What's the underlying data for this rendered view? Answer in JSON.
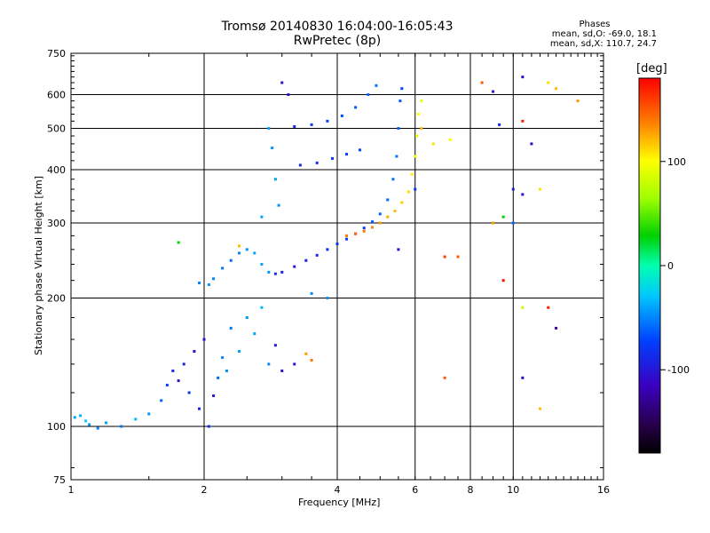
{
  "title_line1": "Tromsø 20140830 16:04:00-16:05:43",
  "title_line2": "RwPretec (8p)",
  "phases": {
    "heading": "Phases",
    "line_o": "mean, sd,O: -69.0, 18.1",
    "line_x": "mean, sd,X: 110.7, 24.7"
  },
  "colorbar": {
    "unit_label": "[deg]",
    "ticks": [
      "100",
      "0",
      "-100"
    ],
    "tick_values": [
      100,
      0,
      -100
    ],
    "range": [
      -180,
      180
    ]
  },
  "chart_data": {
    "type": "scatter",
    "xlabel": "Frequency [MHz]",
    "ylabel": "Stationary phase Virtual Height [km]",
    "x_scale": "log",
    "y_scale": "log",
    "xlim": [
      1,
      16
    ],
    "ylim": [
      75,
      750
    ],
    "x_ticks": [
      1,
      2,
      4,
      6,
      8,
      10,
      16
    ],
    "x_tick_labels": [
      "1",
      "2",
      "4",
      "6",
      "8",
      "10",
      "16"
    ],
    "y_ticks": [
      75,
      100,
      200,
      300,
      400,
      500,
      600,
      750
    ],
    "y_tick_labels": [
      "75",
      "100",
      "200",
      "300",
      "400",
      "500",
      "600",
      "750"
    ],
    "grid": true,
    "points": [
      {
        "x": 1.02,
        "y": 105,
        "phase": -40
      },
      {
        "x": 1.05,
        "y": 106,
        "phase": -35
      },
      {
        "x": 1.08,
        "y": 103,
        "phase": -30
      },
      {
        "x": 1.1,
        "y": 101,
        "phase": -45
      },
      {
        "x": 1.15,
        "y": 99,
        "phase": -50
      },
      {
        "x": 1.2,
        "y": 102,
        "phase": -40
      },
      {
        "x": 1.3,
        "y": 100,
        "phase": -55
      },
      {
        "x": 1.4,
        "y": 104,
        "phase": -35
      },
      {
        "x": 1.5,
        "y": 107,
        "phase": -45
      },
      {
        "x": 1.6,
        "y": 115,
        "phase": -60
      },
      {
        "x": 1.65,
        "y": 125,
        "phase": -70
      },
      {
        "x": 1.7,
        "y": 135,
        "phase": -90
      },
      {
        "x": 1.75,
        "y": 128,
        "phase": -100
      },
      {
        "x": 1.8,
        "y": 140,
        "phase": -95
      },
      {
        "x": 1.85,
        "y": 120,
        "phase": -80
      },
      {
        "x": 1.9,
        "y": 150,
        "phase": -105
      },
      {
        "x": 1.95,
        "y": 110,
        "phase": -90
      },
      {
        "x": 2.0,
        "y": 160,
        "phase": -100
      },
      {
        "x": 2.05,
        "y": 100,
        "phase": -85
      },
      {
        "x": 2.1,
        "y": 118,
        "phase": -95
      },
      {
        "x": 2.15,
        "y": 130,
        "phase": -60
      },
      {
        "x": 2.2,
        "y": 145,
        "phase": -50
      },
      {
        "x": 2.25,
        "y": 135,
        "phase": -45
      },
      {
        "x": 2.3,
        "y": 170,
        "phase": -55
      },
      {
        "x": 2.4,
        "y": 150,
        "phase": -40
      },
      {
        "x": 2.5,
        "y": 180,
        "phase": -45
      },
      {
        "x": 2.6,
        "y": 165,
        "phase": -40
      },
      {
        "x": 2.7,
        "y": 190,
        "phase": -35
      },
      {
        "x": 2.8,
        "y": 140,
        "phase": -50
      },
      {
        "x": 2.9,
        "y": 155,
        "phase": -95
      },
      {
        "x": 3.0,
        "y": 135,
        "phase": -100
      },
      {
        "x": 3.2,
        "y": 140,
        "phase": -105
      },
      {
        "x": 3.4,
        "y": 148,
        "phase": 130
      },
      {
        "x": 3.5,
        "y": 143,
        "phase": 140
      },
      {
        "x": 1.95,
        "y": 217,
        "phase": -50
      },
      {
        "x": 2.05,
        "y": 215,
        "phase": -45
      },
      {
        "x": 2.1,
        "y": 222,
        "phase": -50
      },
      {
        "x": 2.2,
        "y": 235,
        "phase": -55
      },
      {
        "x": 2.3,
        "y": 245,
        "phase": -60
      },
      {
        "x": 2.4,
        "y": 255,
        "phase": -50
      },
      {
        "x": 2.5,
        "y": 260,
        "phase": -45
      },
      {
        "x": 2.6,
        "y": 255,
        "phase": -40
      },
      {
        "x": 2.7,
        "y": 240,
        "phase": -40
      },
      {
        "x": 2.8,
        "y": 230,
        "phase": -45
      },
      {
        "x": 2.9,
        "y": 228,
        "phase": -80
      },
      {
        "x": 3.0,
        "y": 230,
        "phase": -95
      },
      {
        "x": 3.2,
        "y": 237,
        "phase": -100
      },
      {
        "x": 3.4,
        "y": 245,
        "phase": -95
      },
      {
        "x": 3.6,
        "y": 252,
        "phase": -90
      },
      {
        "x": 3.8,
        "y": 260,
        "phase": -85
      },
      {
        "x": 4.0,
        "y": 268,
        "phase": -80
      },
      {
        "x": 4.2,
        "y": 275,
        "phase": -75
      },
      {
        "x": 4.4,
        "y": 283,
        "phase": -70
      },
      {
        "x": 4.6,
        "y": 292,
        "phase": -70
      },
      {
        "x": 4.8,
        "y": 302,
        "phase": -65
      },
      {
        "x": 5.0,
        "y": 315,
        "phase": -60
      },
      {
        "x": 5.2,
        "y": 340,
        "phase": -60
      },
      {
        "x": 5.35,
        "y": 380,
        "phase": -55
      },
      {
        "x": 5.45,
        "y": 430,
        "phase": -55
      },
      {
        "x": 5.5,
        "y": 500,
        "phase": -60
      },
      {
        "x": 5.55,
        "y": 580,
        "phase": -65
      },
      {
        "x": 5.6,
        "y": 620,
        "phase": -70
      },
      {
        "x": 4.2,
        "y": 280,
        "phase": 140
      },
      {
        "x": 4.4,
        "y": 283,
        "phase": 145
      },
      {
        "x": 4.6,
        "y": 287,
        "phase": 140
      },
      {
        "x": 4.8,
        "y": 293,
        "phase": 135
      },
      {
        "x": 5.0,
        "y": 300,
        "phase": 130
      },
      {
        "x": 5.2,
        "y": 310,
        "phase": 125
      },
      {
        "x": 5.4,
        "y": 320,
        "phase": 120
      },
      {
        "x": 5.6,
        "y": 335,
        "phase": 115
      },
      {
        "x": 5.8,
        "y": 355,
        "phase": 110
      },
      {
        "x": 5.9,
        "y": 390,
        "phase": 105
      },
      {
        "x": 6.0,
        "y": 430,
        "phase": 100
      },
      {
        "x": 6.05,
        "y": 480,
        "phase": 95
      },
      {
        "x": 6.1,
        "y": 540,
        "phase": 100
      },
      {
        "x": 6.2,
        "y": 580,
        "phase": 90
      },
      {
        "x": 3.2,
        "y": 505,
        "phase": -85
      },
      {
        "x": 3.5,
        "y": 510,
        "phase": -80
      },
      {
        "x": 3.8,
        "y": 520,
        "phase": -75
      },
      {
        "x": 4.1,
        "y": 535,
        "phase": -70
      },
      {
        "x": 4.4,
        "y": 560,
        "phase": -65
      },
      {
        "x": 4.7,
        "y": 600,
        "phase": -60
      },
      {
        "x": 4.9,
        "y": 630,
        "phase": -55
      },
      {
        "x": 3.3,
        "y": 410,
        "phase": -90
      },
      {
        "x": 3.6,
        "y": 415,
        "phase": -85
      },
      {
        "x": 3.9,
        "y": 425,
        "phase": -80
      },
      {
        "x": 4.2,
        "y": 435,
        "phase": -75
      },
      {
        "x": 4.5,
        "y": 445,
        "phase": -70
      },
      {
        "x": 2.8,
        "y": 500,
        "phase": -40
      },
      {
        "x": 2.85,
        "y": 450,
        "phase": -45
      },
      {
        "x": 2.9,
        "y": 380,
        "phase": -40
      },
      {
        "x": 2.95,
        "y": 330,
        "phase": -45
      },
      {
        "x": 2.7,
        "y": 310,
        "phase": -40
      },
      {
        "x": 3.0,
        "y": 640,
        "phase": -100
      },
      {
        "x": 3.1,
        "y": 600,
        "phase": -105
      },
      {
        "x": 3.5,
        "y": 205,
        "phase": -50
      },
      {
        "x": 3.8,
        "y": 200,
        "phase": -45
      },
      {
        "x": 2.4,
        "y": 265,
        "phase": 120
      },
      {
        "x": 1.75,
        "y": 270,
        "phase": 30
      },
      {
        "x": 8.5,
        "y": 640,
        "phase": 150
      },
      {
        "x": 9.0,
        "y": 610,
        "phase": -100
      },
      {
        "x": 10.5,
        "y": 660,
        "phase": -110
      },
      {
        "x": 12.0,
        "y": 640,
        "phase": 110
      },
      {
        "x": 12.5,
        "y": 620,
        "phase": 120
      },
      {
        "x": 14.0,
        "y": 580,
        "phase": 130
      },
      {
        "x": 9.3,
        "y": 510,
        "phase": -90
      },
      {
        "x": 10.0,
        "y": 360,
        "phase": -95
      },
      {
        "x": 10.5,
        "y": 350,
        "phase": -100
      },
      {
        "x": 9.0,
        "y": 300,
        "phase": 130
      },
      {
        "x": 9.5,
        "y": 310,
        "phase": 30
      },
      {
        "x": 10.0,
        "y": 300,
        "phase": -60
      },
      {
        "x": 10.5,
        "y": 520,
        "phase": 170
      },
      {
        "x": 11.0,
        "y": 460,
        "phase": -110
      },
      {
        "x": 11.5,
        "y": 360,
        "phase": 110
      },
      {
        "x": 7.0,
        "y": 250,
        "phase": 160
      },
      {
        "x": 7.5,
        "y": 250,
        "phase": 150
      },
      {
        "x": 9.5,
        "y": 220,
        "phase": 175
      },
      {
        "x": 10.5,
        "y": 190,
        "phase": 80
      },
      {
        "x": 12.0,
        "y": 190,
        "phase": 170
      },
      {
        "x": 12.5,
        "y": 170,
        "phase": -120
      },
      {
        "x": 10.5,
        "y": 130,
        "phase": -110
      },
      {
        "x": 11.5,
        "y": 110,
        "phase": 120
      },
      {
        "x": 7.0,
        "y": 130,
        "phase": 150
      },
      {
        "x": 6.2,
        "y": 500,
        "phase": 120
      },
      {
        "x": 6.6,
        "y": 460,
        "phase": 110
      },
      {
        "x": 7.2,
        "y": 470,
        "phase": 100
      },
      {
        "x": 6.0,
        "y": 360,
        "phase": -80
      },
      {
        "x": 5.5,
        "y": 260,
        "phase": -100
      }
    ]
  }
}
